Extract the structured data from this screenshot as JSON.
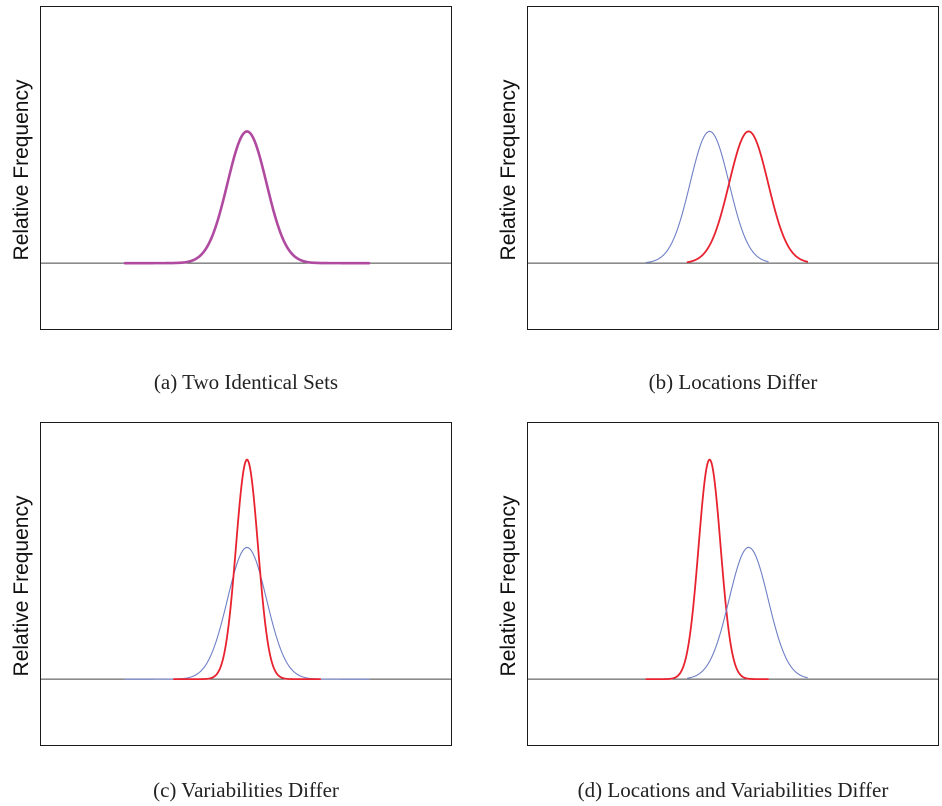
{
  "colors": {
    "red": "#e8232f",
    "blue": "#6f7fc6",
    "identical": "#b04aa0",
    "baseline": "#444444"
  },
  "chart_data": [
    {
      "id": "a",
      "type": "line",
      "caption": "(a) Two Identical Sets",
      "ylabel": "Relative Frequency",
      "xlim": [
        -3.0,
        7.0
      ],
      "ylim": [
        -0.45,
        1.75
      ],
      "series": [
        {
          "color": "identical",
          "width": 2.6,
          "mean": 2,
          "sd": 0.8,
          "height": 0.9,
          "range": [
            -3.0,
            7.0
          ]
        }
      ]
    },
    {
      "id": "b",
      "type": "line",
      "caption": "(b) Locations Differ",
      "ylabel": "Relative Frequency",
      "xlim": [
        -3.0,
        7.0
      ],
      "ylim": [
        -0.45,
        1.75
      ],
      "series": [
        {
          "color": "blue",
          "width": 1.1,
          "mean": 1.0,
          "sd": 0.8,
          "height": 0.9,
          "range": [
            -1.6,
            3.4
          ]
        },
        {
          "color": "red",
          "width": 1.8,
          "mean": 2.6,
          "sd": 0.8,
          "height": 0.9,
          "range": [
            0.1,
            5.0
          ]
        }
      ]
    },
    {
      "id": "c",
      "type": "line",
      "caption": "(c) Variabilities Differ",
      "ylabel": "Relative Frequency",
      "xlim": [
        -3.0,
        7.0
      ],
      "ylim": [
        -0.45,
        1.75
      ],
      "series": [
        {
          "color": "blue",
          "width": 1.1,
          "mean": 2,
          "sd": 0.8,
          "height": 0.9,
          "range": [
            -3.0,
            7.0
          ]
        },
        {
          "color": "red",
          "width": 1.8,
          "mean": 2,
          "sd": 0.45,
          "height": 1.5,
          "range": [
            -1.0,
            5.0
          ]
        }
      ]
    },
    {
      "id": "d",
      "type": "line",
      "caption": "(d) Locations and Variabilities Differ",
      "ylabel": "Relative Frequency",
      "xlim": [
        -3.0,
        7.0
      ],
      "ylim": [
        -0.45,
        1.75
      ],
      "series": [
        {
          "color": "red",
          "width": 1.8,
          "mean": 1.0,
          "sd": 0.45,
          "height": 1.5,
          "range": [
            -1.6,
            3.4
          ]
        },
        {
          "color": "blue",
          "width": 1.1,
          "mean": 2.6,
          "sd": 0.8,
          "height": 0.9,
          "range": [
            0.1,
            5.0
          ]
        }
      ]
    }
  ]
}
